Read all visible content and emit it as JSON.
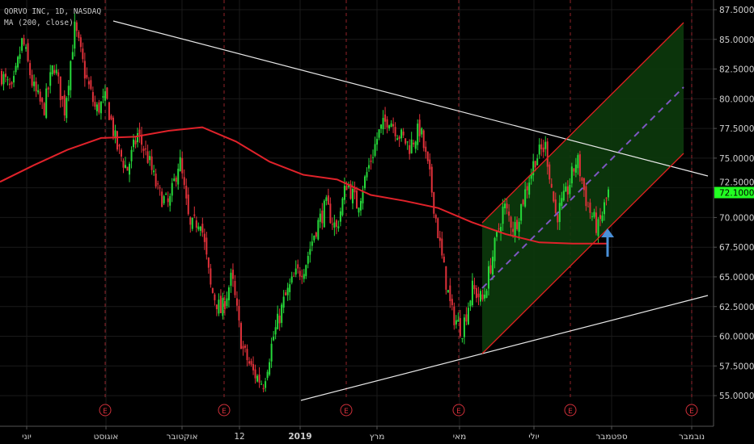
{
  "legend": {
    "symbol_line": "QORVO INC, 1D, NASDAQ",
    "indicator_line": "MA (200, close)"
  },
  "colors": {
    "up": "#26d93a",
    "down": "#e0313a",
    "ma": "#e0222a",
    "channel_fill": "#0c3a0c",
    "channel_line": "#e02020",
    "midline": "#7e57c2",
    "trendline": "#e8e8e8",
    "last_price_bg": "#22ff22",
    "arrow": "#4a90d9",
    "earnings": "#d0303a"
  },
  "chart_data": {
    "type": "candlestick",
    "title": "QORVO INC, 1D, NASDAQ",
    "ylim": [
      53.5,
      88
    ],
    "y_ticks": [
      "87.5000",
      "85.0000",
      "82.5000",
      "80.0000",
      "77.5000",
      "75.0000",
      "72.5000",
      "70.0000",
      "67.5000",
      "65.0000",
      "62.5000",
      "60.0000",
      "57.5000",
      "55.0000"
    ],
    "x_ticks": [
      "יוני",
      "אוגוסט",
      "אוקטובר",
      "12",
      "2019",
      "מרץ",
      "מאי",
      "יולי",
      "ספטמבר",
      "נובמבר"
    ],
    "last_price": "72.1000",
    "approx_close_path": [
      82,
      80.5,
      85,
      81,
      79,
      83,
      79,
      86,
      82,
      79,
      80,
      76,
      74,
      77,
      75,
      72,
      71,
      75,
      69,
      70,
      64,
      62,
      65,
      59,
      57,
      56,
      60,
      63,
      65,
      66,
      69,
      71,
      69,
      73,
      71,
      74,
      77,
      78.5,
      77,
      76,
      77.5,
      73,
      67,
      62,
      60.5,
      64,
      63,
      67,
      71,
      69,
      72,
      75,
      76,
      70,
      72,
      75,
      71,
      69,
      72.1
    ],
    "moving_average_200_approx": [
      73,
      74.4,
      75.7,
      76.7,
      76.8,
      77.3,
      77.6,
      76.4,
      74.7,
      73.6,
      73.2,
      71.9,
      71.4,
      70.8,
      69.6,
      68.6,
      67.9,
      67.8,
      67.8
    ],
    "earnings_marker": "E",
    "grid": true
  }
}
